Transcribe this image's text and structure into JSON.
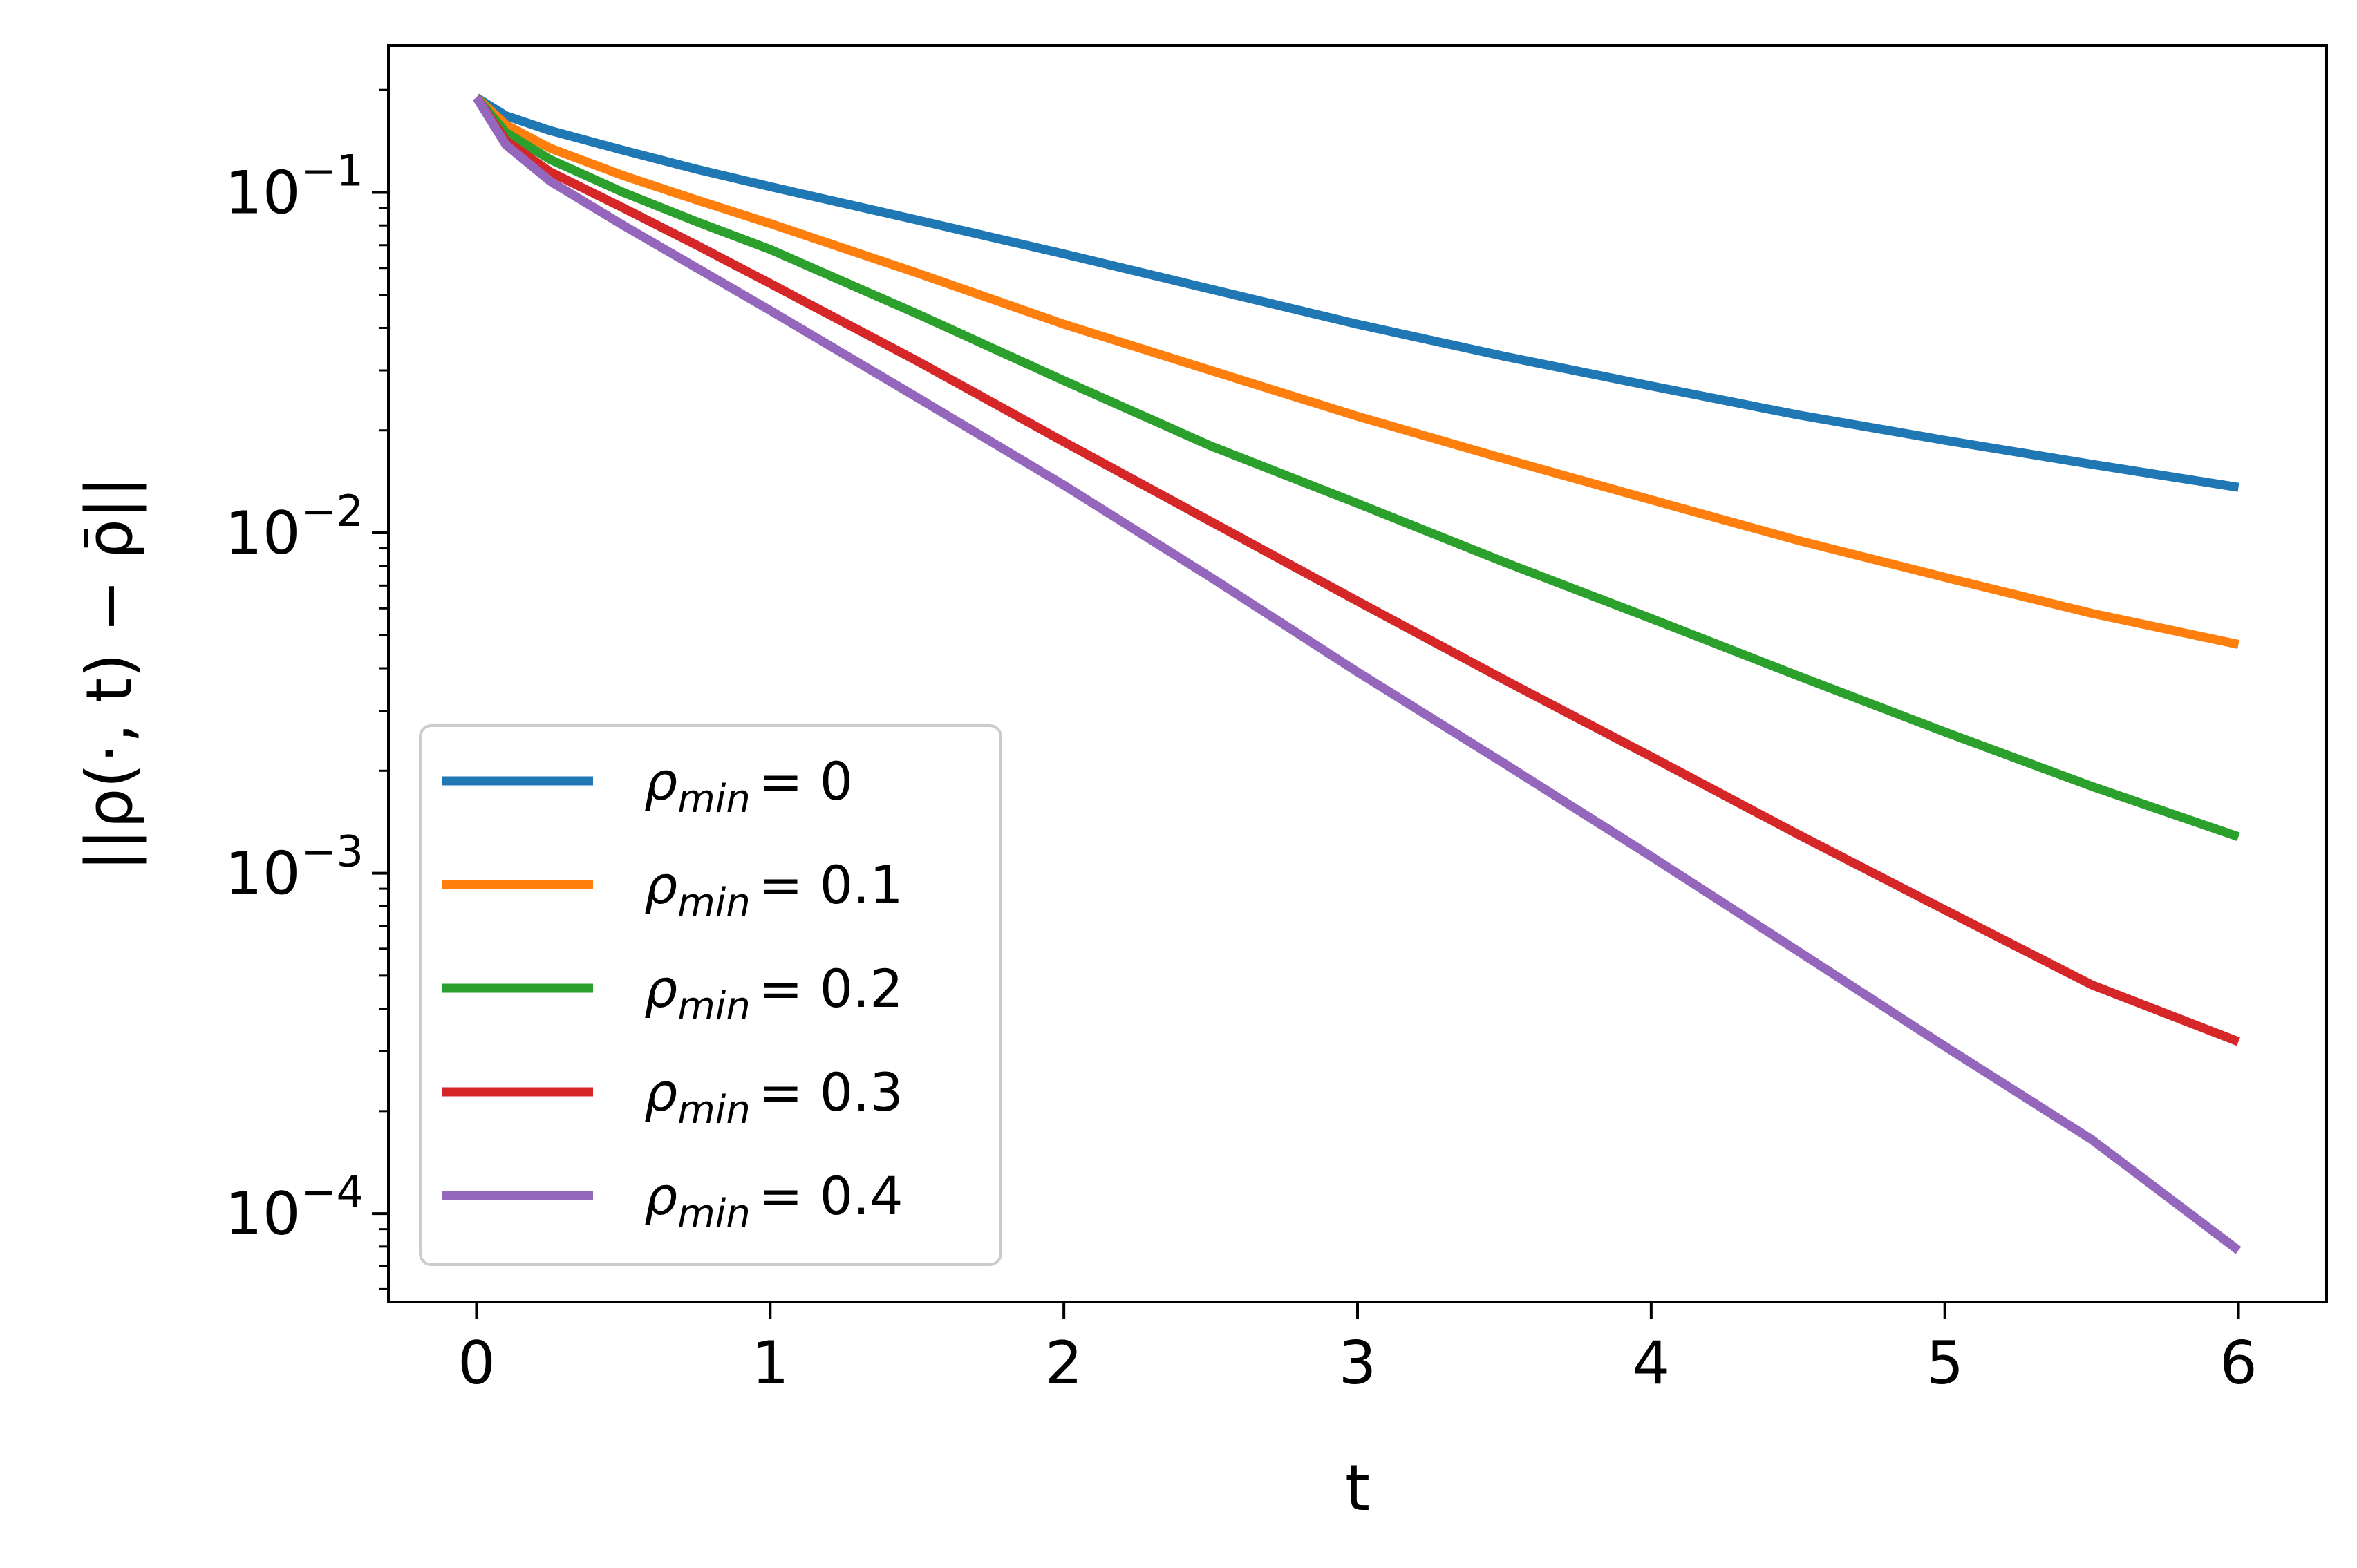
{
  "chart_data": {
    "type": "line",
    "xlabel": "t",
    "ylabel": "||ρ(·, t) − ρ̄||",
    "yscale": "log",
    "xlim": [
      -0.3,
      6.3
    ],
    "ylim": [
      5.5e-05,
      0.27
    ],
    "x_ticks": [
      0,
      1,
      2,
      3,
      4,
      5,
      6
    ],
    "x_tick_labels": [
      "0",
      "1",
      "2",
      "3",
      "4",
      "5",
      "6"
    ],
    "y_ticks": [
      {
        "value": 0.1,
        "base": "10",
        "exponent": "−1"
      },
      {
        "value": 0.01,
        "base": "10",
        "exponent": "−2"
      },
      {
        "value": 0.001,
        "base": "10",
        "exponent": "−3"
      },
      {
        "value": 0.0001,
        "base": "10",
        "exponent": "−4"
      }
    ],
    "legend": {
      "location": "lower-left"
    },
    "series": [
      {
        "name": "ρmin = 0",
        "label_parts": {
          "symbol": "ρ",
          "subscript": "min",
          "value": "= 0"
        },
        "color": "#1f77b4",
        "x": [
          0,
          0.1,
          0.25,
          0.5,
          0.75,
          1,
          1.5,
          2,
          2.5,
          3,
          3.5,
          4,
          4.5,
          5,
          5.5,
          6
        ],
        "y": [
          0.19,
          0.168,
          0.152,
          0.133,
          0.117,
          0.104,
          0.083,
          0.066,
          0.052,
          0.041,
          0.033,
          0.027,
          0.0222,
          0.0187,
          0.0159,
          0.0136
        ]
      },
      {
        "name": "ρmin = 0.1",
        "label_parts": {
          "symbol": "ρ",
          "subscript": "min",
          "value": "= 0.1"
        },
        "color": "#ff7f0e",
        "x": [
          0,
          0.1,
          0.25,
          0.5,
          0.75,
          1,
          1.5,
          2,
          2.5,
          3,
          3.5,
          4,
          4.5,
          5,
          5.5,
          6
        ],
        "y": [
          0.19,
          0.158,
          0.135,
          0.112,
          0.095,
          0.081,
          0.058,
          0.041,
          0.03,
          0.022,
          0.0165,
          0.0125,
          0.0095,
          0.0074,
          0.0058,
          0.0047
        ]
      },
      {
        "name": "ρmin = 0.2",
        "label_parts": {
          "symbol": "ρ",
          "subscript": "min",
          "value": "= 0.2"
        },
        "color": "#2ca02c",
        "x": [
          0,
          0.1,
          0.25,
          0.5,
          0.75,
          1,
          1.5,
          2,
          2.5,
          3,
          3.5,
          4,
          4.5,
          5,
          5.5,
          6
        ],
        "y": [
          0.19,
          0.15,
          0.125,
          0.1,
          0.082,
          0.068,
          0.044,
          0.028,
          0.018,
          0.0122,
          0.0082,
          0.0056,
          0.0038,
          0.0026,
          0.0018,
          0.00128
        ]
      },
      {
        "name": "ρmin = 0.3",
        "label_parts": {
          "symbol": "ρ",
          "subscript": "min",
          "value": "= 0.3"
        },
        "color": "#d62728",
        "x": [
          0,
          0.1,
          0.25,
          0.5,
          0.75,
          1,
          1.5,
          2,
          2.5,
          3,
          3.5,
          4,
          4.5,
          5,
          5.5,
          6
        ],
        "y": [
          0.19,
          0.142,
          0.115,
          0.09,
          0.07,
          0.054,
          0.032,
          0.0185,
          0.0108,
          0.0063,
          0.0037,
          0.0022,
          0.0013,
          0.00078,
          0.00047,
          0.00032
        ]
      },
      {
        "name": "ρmin = 0.4",
        "label_parts": {
          "symbol": "ρ",
          "subscript": "min",
          "value": "= 0.4"
        },
        "color": "#9467bd",
        "x": [
          0,
          0.1,
          0.25,
          0.5,
          0.75,
          1,
          1.5,
          2,
          2.5,
          3,
          3.5,
          4,
          4.5,
          5,
          5.5,
          6
        ],
        "y": [
          0.19,
          0.138,
          0.108,
          0.08,
          0.06,
          0.045,
          0.025,
          0.0138,
          0.0074,
          0.0039,
          0.0021,
          0.00112,
          0.00059,
          0.00031,
          0.000165,
          7.8e-05
        ]
      }
    ]
  }
}
